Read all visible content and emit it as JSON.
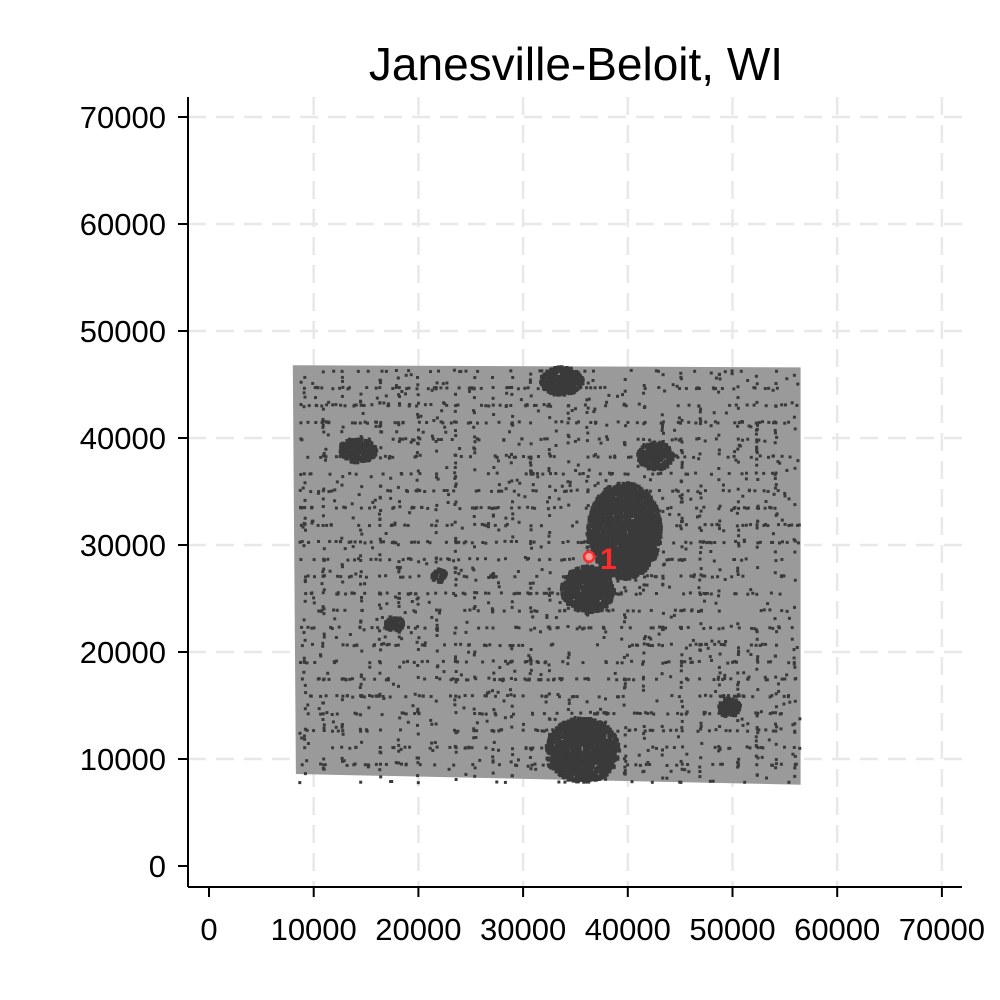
{
  "chart_data": {
    "type": "scatter",
    "title": "Janesville-Beloit, WI",
    "xlabel": "",
    "ylabel": "",
    "xlim": [
      -2000,
      72000
    ],
    "ylim": [
      -2000,
      72000
    ],
    "xticks": [
      0,
      10000,
      20000,
      30000,
      40000,
      50000,
      60000,
      70000
    ],
    "yticks": [
      0,
      10000,
      20000,
      30000,
      40000,
      50000,
      60000,
      70000
    ],
    "xtick_labels": [
      "0",
      "10000",
      "20000",
      "30000",
      "40000",
      "50000",
      "60000",
      "70000"
    ],
    "ytick_labels": [
      "0",
      "10000",
      "20000",
      "30000",
      "40000",
      "50000",
      "60000",
      "70000"
    ],
    "grid": true,
    "grid_style": "dashed",
    "study_area": {
      "description": "gridded raster of cells",
      "corners": [
        [
          8000,
          46800
        ],
        [
          56500,
          46600
        ],
        [
          56500,
          7600
        ],
        [
          8300,
          8600
        ]
      ],
      "fill_color": "#9a9a9a"
    },
    "dense_clusters": [
      {
        "x": 39500,
        "y": 31500,
        "rx": 3500,
        "ry": 4500
      },
      {
        "x": 36000,
        "y": 26000,
        "rx": 2500,
        "ry": 2200
      },
      {
        "x": 35500,
        "y": 11000,
        "rx": 3500,
        "ry": 3000
      },
      {
        "x": 33500,
        "y": 45500,
        "rx": 2000,
        "ry": 1300
      },
      {
        "x": 14000,
        "y": 39000,
        "rx": 1800,
        "ry": 1100
      },
      {
        "x": 42500,
        "y": 38500,
        "rx": 1700,
        "ry": 1300
      },
      {
        "x": 49500,
        "y": 15000,
        "rx": 1000,
        "ry": 900
      },
      {
        "x": 17500,
        "y": 22800,
        "rx": 900,
        "ry": 700
      },
      {
        "x": 21800,
        "y": 27300,
        "rx": 700,
        "ry": 600
      }
    ],
    "marker": {
      "label": "1",
      "x": 36300,
      "y": 28900,
      "color": "#ff2b2b"
    },
    "colors": {
      "area": "#9a9a9a",
      "cells": "#3a3a3a",
      "grid": "#e8e8e8",
      "axis": "#000000",
      "marker": "#ff2b2b",
      "marker_fill": "#ff9a9a"
    }
  }
}
